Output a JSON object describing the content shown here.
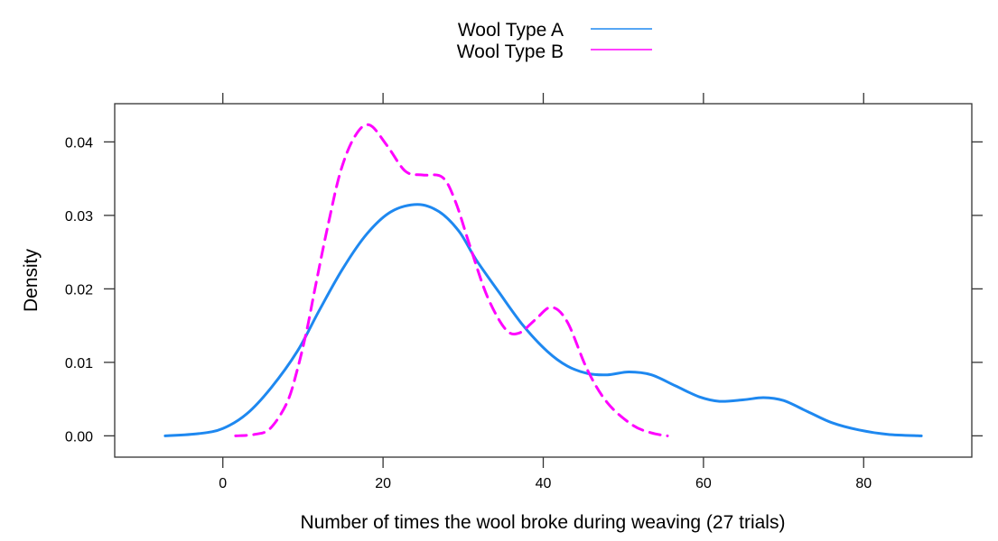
{
  "chart_data": {
    "type": "line",
    "title": "",
    "xlabel": "Number of times the wool broke during weaving (27 trials)",
    "ylabel": "Density",
    "xlim": [
      -13.5,
      93.5
    ],
    "ylim": [
      -0.0029,
      0.0452
    ],
    "x_ticks": [
      0,
      20,
      40,
      60,
      80
    ],
    "x_tick_labels": [
      "0",
      "20",
      "40",
      "60",
      "80"
    ],
    "y_ticks": [
      0.0,
      0.01,
      0.02,
      0.03,
      0.04
    ],
    "y_tick_labels": [
      "0.00",
      "0.01",
      "0.02",
      "0.03",
      "0.04"
    ],
    "grid": false,
    "legend_position": "top",
    "series": [
      {
        "name": "Wool Type A",
        "color": "#1E88F0",
        "line_style": "solid",
        "x": [
          -7.2,
          -3.0,
          0.0,
          3.0,
          6.0,
          9.3,
          12.0,
          15.0,
          18.0,
          21.0,
          24.3,
          27.0,
          29.5,
          31.6,
          34.5,
          37.5,
          40.5,
          43.0,
          45.5,
          48.0,
          50.7,
          53.5,
          56.5,
          59.5,
          62.0,
          65.0,
          67.5,
          70.0,
          73.0,
          76.0,
          79.4,
          83.0,
          87.2
        ],
        "values": [
          0.0,
          0.0003,
          0.001,
          0.003,
          0.0065,
          0.0115,
          0.017,
          0.0228,
          0.0275,
          0.0305,
          0.0315,
          0.0305,
          0.0278,
          0.024,
          0.0195,
          0.015,
          0.0115,
          0.0095,
          0.0085,
          0.0083,
          0.0087,
          0.0083,
          0.0068,
          0.0053,
          0.0047,
          0.0049,
          0.0052,
          0.0048,
          0.0033,
          0.0018,
          0.0008,
          0.0002,
          0.0
        ]
      },
      {
        "name": "Wool Type B",
        "color": "#FF00FF",
        "line_style": "dashed",
        "x": [
          1.6,
          4.0,
          5.9,
          8.0,
          9.3,
          10.5,
          11.5,
          13.0,
          14.7,
          16.5,
          18.3,
          20.5,
          22.8,
          25.0,
          27.4,
          29.0,
          30.8,
          33.0,
          35.3,
          37.0,
          39.0,
          41.0,
          43.0,
          45.5,
          48.0,
          51.1,
          53.5,
          55.5
        ],
        "values": [
          0.0,
          0.0002,
          0.001,
          0.0045,
          0.009,
          0.0145,
          0.02,
          0.028,
          0.036,
          0.0408,
          0.0423,
          0.0395,
          0.036,
          0.0355,
          0.0352,
          0.032,
          0.026,
          0.019,
          0.0145,
          0.014,
          0.0158,
          0.0175,
          0.0155,
          0.009,
          0.0045,
          0.0015,
          0.0004,
          0.0
        ]
      }
    ]
  },
  "legend": {
    "items": [
      {
        "label": "Wool Type A",
        "color": "#1E88F0",
        "dashed": false
      },
      {
        "label": "Wool Type B",
        "color": "#FF00FF",
        "dashed": true
      }
    ]
  }
}
